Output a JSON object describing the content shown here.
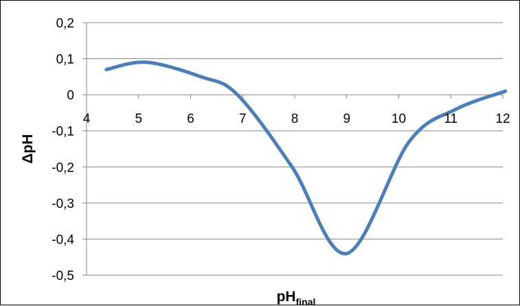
{
  "chart_data": {
    "type": "line",
    "title": "",
    "xlabel": "pH",
    "xlabel_subscript": "final",
    "ylabel": "ΔpH",
    "xlim": [
      4,
      12
    ],
    "ylim": [
      -0.5,
      0.2
    ],
    "x_ticks": [
      "4",
      "5",
      "6",
      "7",
      "8",
      "9",
      "10",
      "11",
      "12"
    ],
    "y_ticks": [
      "0,2",
      "0,1",
      "0",
      "-0,1",
      "-0,2",
      "-0,3",
      "-0,4",
      "-0,5"
    ],
    "grid": "horizontal",
    "legend": "none",
    "smooth": true,
    "series": [
      {
        "color": "#4a7ebb",
        "x": [
          4.38,
          5.15,
          6.2,
          6.9,
          7.95,
          9.0,
          10.2,
          11.1,
          12.05
        ],
        "y": [
          0.07,
          0.09,
          0.05,
          0.0,
          -0.2,
          -0.44,
          -0.13,
          -0.04,
          0.01
        ]
      }
    ]
  }
}
